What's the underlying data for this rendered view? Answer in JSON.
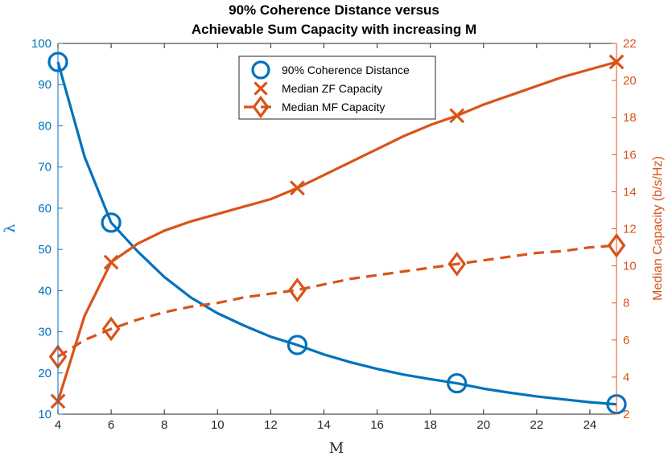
{
  "chart_data": {
    "type": "line",
    "title_line1": "90% Coherence Distance versus",
    "title_line2": "Achievable Sum Capacity with increasing M",
    "xlabel": "M",
    "ylabel_left": "λ",
    "ylabel_right": "Median Capacity (b/s/Hz)",
    "xlim": [
      4,
      25
    ],
    "ylim_left": [
      10,
      100
    ],
    "ylim_right": [
      2,
      22
    ],
    "x_ticks": [
      4,
      6,
      8,
      10,
      12,
      14,
      16,
      18,
      20,
      22,
      24
    ],
    "y_left_ticks": [
      10,
      20,
      30,
      40,
      50,
      60,
      70,
      80,
      90,
      100
    ],
    "y_right_ticks": [
      2,
      4,
      6,
      8,
      10,
      12,
      14,
      16,
      18,
      20,
      22
    ],
    "colors": {
      "left": "#0072BD",
      "right": "#D95319",
      "axis": "#262626"
    },
    "series": [
      {
        "name": "90% Coherence Distance",
        "axis": "left",
        "style": "solid",
        "marker": "circle",
        "x": [
          4,
          5,
          6,
          7,
          8,
          9,
          10,
          11,
          12,
          13,
          14,
          15,
          16,
          17,
          18,
          19,
          20,
          21,
          22,
          23,
          24,
          25
        ],
        "values": [
          95.5,
          72.5,
          56.5,
          49.5,
          43.3,
          38.3,
          34.5,
          31.5,
          28.8,
          26.8,
          24.5,
          22.6,
          21.0,
          19.6,
          18.5,
          17.5,
          16.2,
          15.2,
          14.3,
          13.6,
          12.9,
          12.4
        ],
        "marker_x": [
          4,
          6,
          13,
          19,
          25
        ],
        "marker_values": [
          95.5,
          56.5,
          26.8,
          17.5,
          12.4
        ]
      },
      {
        "name": "Median ZF Capacity",
        "axis": "right",
        "style": "solid",
        "marker": "x",
        "x": [
          4,
          5,
          6,
          7,
          8,
          9,
          10,
          11,
          12,
          13,
          14,
          15,
          16,
          17,
          18,
          19,
          20,
          21,
          22,
          23,
          24,
          25
        ],
        "values": [
          2.7,
          7.3,
          10.2,
          11.2,
          11.9,
          12.4,
          12.8,
          13.2,
          13.6,
          14.2,
          14.9,
          15.6,
          16.3,
          17.0,
          17.6,
          18.1,
          18.7,
          19.2,
          19.7,
          20.2,
          20.6,
          21.0
        ],
        "marker_x": [
          4,
          6,
          13,
          19,
          25
        ],
        "marker_values": [
          2.7,
          10.2,
          14.2,
          18.1,
          21.0
        ]
      },
      {
        "name": "Median MF Capacity",
        "axis": "right",
        "style": "dashed",
        "marker": "diamond",
        "x": [
          4,
          5,
          6,
          7,
          8,
          9,
          10,
          11,
          12,
          13,
          14,
          15,
          16,
          17,
          18,
          19,
          20,
          21,
          22,
          23,
          24,
          25
        ],
        "values": [
          5.1,
          6.0,
          6.6,
          7.1,
          7.5,
          7.8,
          8.0,
          8.3,
          8.5,
          8.7,
          9.0,
          9.3,
          9.5,
          9.7,
          9.9,
          10.1,
          10.3,
          10.5,
          10.7,
          10.8,
          11.0,
          11.1
        ],
        "marker_x": [
          4,
          6,
          13,
          19,
          25
        ],
        "marker_values": [
          5.1,
          6.6,
          8.7,
          10.1,
          11.1
        ]
      }
    ],
    "legend": [
      "90% Coherence Distance",
      "Median ZF Capacity",
      "Median MF Capacity"
    ],
    "legend_position": "top-center"
  }
}
